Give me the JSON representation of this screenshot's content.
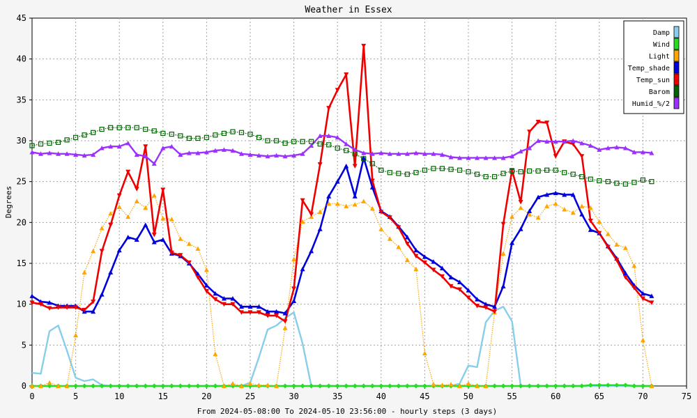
{
  "chart_data": {
    "type": "line",
    "title": "Weather in Essex",
    "xlabel": "From 2024-05-08:00 To 2024-05-10 23:56:00 - hourly steps (3 days)",
    "ylabel": "Degrees",
    "xlim": [
      0,
      75
    ],
    "ylim": [
      0,
      45
    ],
    "xticks": [
      0,
      5,
      10,
      15,
      20,
      25,
      30,
      35,
      40,
      45,
      50,
      55,
      60,
      65,
      70,
      75
    ],
    "yticks": [
      0,
      5,
      10,
      15,
      20,
      25,
      30,
      35,
      40,
      45
    ],
    "grid": true,
    "legend_position": "top-right",
    "series": [
      {
        "name": "Damp",
        "color": "#87ceeb",
        "marker": "none",
        "style": "solid",
        "x": [
          0,
          1,
          2,
          3,
          4,
          5,
          6,
          7,
          8,
          9,
          10,
          11,
          12,
          13,
          14,
          15,
          16,
          17,
          18,
          19,
          20,
          21,
          22,
          23,
          24,
          25,
          26,
          27,
          28,
          29,
          30,
          31,
          32,
          33,
          34,
          35,
          36,
          37,
          38,
          39,
          40,
          41,
          42,
          43,
          44,
          45,
          46,
          47,
          48,
          49,
          50,
          51,
          52,
          53,
          54,
          55,
          56,
          57,
          58,
          59,
          60,
          61,
          62,
          63,
          64,
          65,
          66,
          67,
          68,
          69,
          70,
          71
        ],
        "values": [
          1.6,
          1.5,
          6.7,
          7.4,
          4.3,
          1.0,
          0.6,
          0.8,
          0.1,
          0,
          0,
          0,
          0,
          0,
          0,
          0,
          0,
          0,
          0,
          0,
          0,
          0,
          0,
          0,
          0,
          0.4,
          3.5,
          6.9,
          7.4,
          8.3,
          9.0,
          5.2,
          0,
          0,
          0,
          0,
          0,
          0,
          0,
          0,
          0,
          0,
          0,
          0,
          0,
          0,
          0,
          0,
          0,
          0.3,
          2.5,
          2.3,
          7.8,
          9.2,
          9.7,
          7.9,
          0,
          0,
          0,
          0,
          0,
          0,
          0,
          0,
          0,
          0,
          0,
          0,
          0,
          0,
          0,
          0
        ]
      },
      {
        "name": "Wind",
        "color": "#22dd22",
        "marker": "diamond",
        "style": "solid",
        "x": [
          0,
          1,
          2,
          3,
          4,
          5,
          6,
          7,
          8,
          9,
          10,
          11,
          12,
          13,
          14,
          15,
          16,
          17,
          18,
          19,
          20,
          21,
          22,
          23,
          24,
          25,
          26,
          27,
          28,
          29,
          30,
          31,
          32,
          33,
          34,
          35,
          36,
          37,
          38,
          39,
          40,
          41,
          42,
          43,
          44,
          45,
          46,
          47,
          48,
          49,
          50,
          51,
          52,
          53,
          54,
          55,
          56,
          57,
          58,
          59,
          60,
          61,
          62,
          63,
          64,
          65,
          66,
          67,
          68,
          69,
          70,
          71
        ],
        "values": [
          0,
          0,
          0,
          0,
          0,
          0,
          0,
          0,
          0,
          0,
          0,
          0,
          0,
          0,
          0,
          0,
          0,
          0,
          0,
          0,
          0,
          0,
          0,
          0,
          0,
          0,
          0,
          0,
          0,
          0,
          0,
          0,
          0,
          0,
          0,
          0,
          0,
          0,
          0,
          0,
          0,
          0,
          0,
          0,
          0,
          0,
          0,
          0,
          0,
          0,
          0,
          0,
          0,
          0,
          0,
          0,
          0,
          0,
          0,
          0,
          0,
          0,
          0,
          0,
          0.1,
          0.1,
          0.1,
          0.1,
          0.1,
          0,
          0,
          0
        ]
      },
      {
        "name": "Light",
        "color": "#ffa500",
        "marker": "triangle-up",
        "style": "dotted",
        "x": [
          0,
          1,
          2,
          3,
          4,
          5,
          6,
          7,
          8,
          9,
          10,
          11,
          12,
          13,
          14,
          15,
          16,
          17,
          18,
          19,
          20,
          21,
          22,
          23,
          24,
          25,
          26,
          27,
          28,
          29,
          30,
          31,
          32,
          33,
          34,
          35,
          36,
          37,
          38,
          39,
          40,
          41,
          42,
          43,
          44,
          45,
          46,
          47,
          48,
          49,
          50,
          51,
          52,
          53,
          54,
          55,
          56,
          57,
          58,
          59,
          60,
          61,
          62,
          63,
          64,
          65,
          66,
          67,
          68,
          69,
          70,
          71
        ],
        "values": [
          0,
          0,
          0.4,
          0,
          0,
          6.2,
          13.9,
          16.5,
          19.3,
          21.1,
          21.9,
          20.7,
          22.6,
          21.8,
          23.3,
          20.5,
          20.4,
          18.0,
          17.4,
          16.8,
          14.2,
          3.9,
          0,
          0.3,
          0,
          0.3,
          0.1,
          0.1,
          0,
          7.1,
          15.5,
          20.1,
          20.7,
          21.3,
          22.3,
          22.3,
          22.0,
          22.2,
          22.6,
          21.7,
          19.2,
          18.0,
          17.0,
          15.4,
          14.3,
          4.0,
          0.2,
          0.1,
          0.2,
          0,
          0.3,
          0,
          0,
          9.0,
          16.2,
          20.7,
          21.8,
          21.0,
          20.6,
          22.0,
          22.3,
          21.6,
          21.2,
          22.0,
          21.8,
          20.1,
          18.6,
          17.3,
          16.9,
          14.7,
          5.6,
          0
        ]
      },
      {
        "name": "Temp_shade",
        "color": "#0000dd",
        "marker": "triangle-up",
        "style": "solid",
        "x": [
          0,
          1,
          2,
          3,
          4,
          5,
          6,
          7,
          8,
          9,
          10,
          11,
          12,
          13,
          14,
          15,
          16,
          17,
          18,
          19,
          20,
          21,
          22,
          23,
          24,
          25,
          26,
          27,
          28,
          29,
          30,
          31,
          32,
          33,
          34,
          35,
          36,
          37,
          38,
          39,
          40,
          41,
          42,
          43,
          44,
          45,
          46,
          47,
          48,
          49,
          50,
          51,
          52,
          53,
          54,
          55,
          56,
          57,
          58,
          59,
          60,
          61,
          62,
          63,
          64,
          65,
          66,
          67,
          68,
          69,
          70,
          71
        ],
        "values": [
          11.0,
          10.3,
          10.2,
          9.8,
          9.8,
          9.8,
          9.1,
          9.1,
          11.2,
          13.9,
          16.6,
          18.2,
          17.9,
          19.7,
          17.6,
          17.9,
          16.2,
          15.9,
          15.0,
          13.7,
          12.3,
          11.3,
          10.7,
          10.7,
          9.7,
          9.7,
          9.7,
          9.1,
          9.1,
          8.9,
          10.4,
          14.3,
          16.5,
          19.2,
          23.2,
          25.0,
          26.9,
          23.2,
          27.9,
          24.3,
          21.4,
          20.7,
          19.5,
          18.2,
          16.6,
          15.8,
          15.2,
          14.4,
          13.3,
          12.7,
          11.7,
          10.6,
          10.0,
          9.7,
          12.2,
          17.5,
          19.2,
          21.4,
          23.1,
          23.4,
          23.6,
          23.4,
          23.4,
          21.0,
          19.1,
          18.7,
          17.1,
          15.6,
          13.8,
          12.3,
          11.3,
          11.0
        ]
      },
      {
        "name": "Temp_sun",
        "color": "#ee0000",
        "marker": "triangle-down",
        "style": "solid",
        "x": [
          0,
          1,
          2,
          3,
          4,
          5,
          6,
          7,
          8,
          9,
          10,
          11,
          12,
          13,
          14,
          15,
          16,
          17,
          18,
          19,
          20,
          21,
          22,
          23,
          24,
          25,
          26,
          27,
          28,
          29,
          30,
          31,
          32,
          33,
          34,
          35,
          36,
          37,
          38,
          39,
          40,
          41,
          42,
          43,
          44,
          45,
          46,
          47,
          48,
          49,
          50,
          51,
          52,
          53,
          54,
          55,
          56,
          57,
          58,
          59,
          60,
          61,
          62,
          63,
          64,
          65,
          66,
          67,
          68,
          69,
          70,
          71
        ],
        "values": [
          10.2,
          10.0,
          9.5,
          9.6,
          9.6,
          9.6,
          9.3,
          10.3,
          16.5,
          19.7,
          23.3,
          26.2,
          24.1,
          29.3,
          18.5,
          24.0,
          16.3,
          16.0,
          15.1,
          13.3,
          11.6,
          10.6,
          10.0,
          10.0,
          9.0,
          9.0,
          9.0,
          8.6,
          8.6,
          7.9,
          11.9,
          22.7,
          21.0,
          27.1,
          34.0,
          36.2,
          38.1,
          26.9,
          41.6,
          25.1,
          21.3,
          20.6,
          19.4,
          17.4,
          15.9,
          15.1,
          14.2,
          13.4,
          12.2,
          11.8,
          10.8,
          9.8,
          9.6,
          9.1,
          19.8,
          26.4,
          22.5,
          31.1,
          32.3,
          32.2,
          28.1,
          29.9,
          29.6,
          28.1,
          20.2,
          18.7,
          17.0,
          15.4,
          13.3,
          12.0,
          10.7,
          10.2
        ]
      },
      {
        "name": "Barom",
        "color": "#006400",
        "marker": "square",
        "style": "dotted",
        "x": [
          0,
          1,
          2,
          3,
          4,
          5,
          6,
          7,
          8,
          9,
          10,
          11,
          12,
          13,
          14,
          15,
          16,
          17,
          18,
          19,
          20,
          21,
          22,
          23,
          24,
          25,
          26,
          27,
          28,
          29,
          30,
          31,
          32,
          33,
          34,
          35,
          36,
          37,
          38,
          39,
          40,
          41,
          42,
          43,
          44,
          45,
          46,
          47,
          48,
          49,
          50,
          51,
          52,
          53,
          54,
          55,
          56,
          57,
          58,
          59,
          60,
          61,
          62,
          63,
          64,
          65,
          66,
          67,
          68,
          69,
          70,
          71
        ],
        "values": [
          29.4,
          29.6,
          29.7,
          29.8,
          30.1,
          30.4,
          30.7,
          31.0,
          31.4,
          31.6,
          31.6,
          31.6,
          31.6,
          31.4,
          31.2,
          30.9,
          30.8,
          30.6,
          30.3,
          30.3,
          30.4,
          30.7,
          30.9,
          31.1,
          31.0,
          30.8,
          30.4,
          30.0,
          30.0,
          29.7,
          29.9,
          29.9,
          29.9,
          29.6,
          29.5,
          29.1,
          28.8,
          28.4,
          27.8,
          27.2,
          26.4,
          26.1,
          26.0,
          25.9,
          26.1,
          26.4,
          26.6,
          26.6,
          26.5,
          26.4,
          26.2,
          25.9,
          25.6,
          25.6,
          26.0,
          26.3,
          26.2,
          26.3,
          26.3,
          26.4,
          26.4,
          26.1,
          25.9,
          25.6,
          25.3,
          25.1,
          25.0,
          24.8,
          24.7,
          24.9,
          25.2,
          25.0
        ]
      },
      {
        "name": "Humid_%/2",
        "color": "#9b30ff",
        "marker": "triangle-up",
        "style": "solid",
        "x": [
          0,
          1,
          2,
          3,
          4,
          5,
          6,
          7,
          8,
          9,
          10,
          11,
          12,
          13,
          14,
          15,
          16,
          17,
          18,
          19,
          20,
          21,
          22,
          23,
          24,
          25,
          26,
          27,
          28,
          29,
          30,
          31,
          32,
          33,
          34,
          35,
          36,
          37,
          38,
          39,
          40,
          41,
          42,
          43,
          44,
          45,
          46,
          47,
          48,
          49,
          50,
          51,
          52,
          53,
          54,
          55,
          56,
          57,
          58,
          59,
          60,
          61,
          62,
          63,
          64,
          65,
          66,
          67,
          68,
          69,
          70,
          71
        ],
        "values": [
          28.6,
          28.4,
          28.5,
          28.4,
          28.4,
          28.3,
          28.2,
          28.3,
          29.1,
          29.3,
          29.3,
          29.7,
          28.3,
          28.1,
          27.2,
          29.1,
          29.3,
          28.3,
          28.5,
          28.5,
          28.6,
          28.8,
          28.9,
          28.8,
          28.4,
          28.3,
          28.2,
          28.1,
          28.2,
          28.1,
          28.2,
          28.4,
          29.4,
          30.6,
          30.6,
          30.4,
          29.6,
          28.9,
          28.5,
          28.4,
          28.5,
          28.4,
          28.4,
          28.4,
          28.5,
          28.4,
          28.4,
          28.3,
          28.0,
          27.9,
          27.9,
          27.9,
          27.9,
          27.9,
          27.9,
          28.1,
          28.7,
          29.1,
          30.0,
          29.9,
          29.9,
          29.9,
          30.0,
          29.7,
          29.4,
          28.9,
          29.1,
          29.2,
          29.1,
          28.6,
          28.6,
          28.5
        ]
      }
    ]
  }
}
